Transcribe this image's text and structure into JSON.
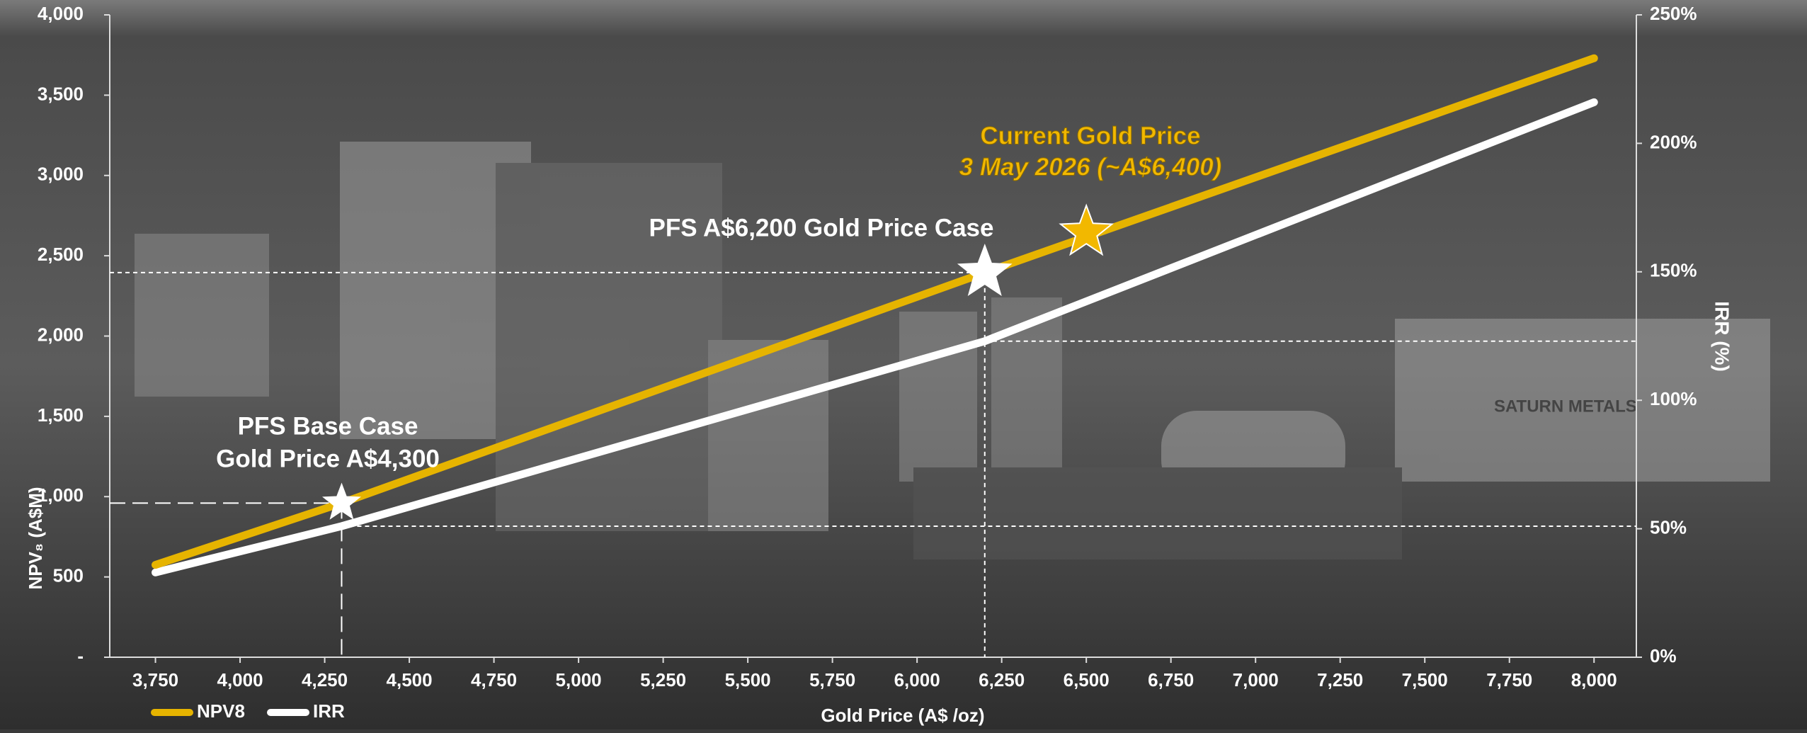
{
  "chart_data": {
    "type": "line",
    "x_label": "Gold Price (A$ /oz)",
    "y_label": "NPV₈ (A$M)",
    "y2_label": "IRR (%)",
    "x": [
      3750,
      4300,
      6200,
      8000
    ],
    "series": [
      {
        "name": "NPV8",
        "color": "#e6b400",
        "values": [
          575,
          960,
          2395,
          3730
        ]
      },
      {
        "name": "IRR",
        "color": "#ffffff",
        "axis": "y2",
        "values": [
          33,
          51,
          123,
          216
        ]
      }
    ],
    "xlim": [
      3615,
      8125
    ],
    "xticks": [
      {
        "value": 3750,
        "label": "3,750"
      },
      {
        "value": 4000,
        "label": "4,000"
      },
      {
        "value": 4250,
        "label": "4,250"
      },
      {
        "value": 4500,
        "label": "4,500"
      },
      {
        "value": 4750,
        "label": "4,750"
      },
      {
        "value": 5000,
        "label": "5,000"
      },
      {
        "value": 5250,
        "label": "5,250"
      },
      {
        "value": 5500,
        "label": "5,500"
      },
      {
        "value": 5750,
        "label": "5,750"
      },
      {
        "value": 6000,
        "label": "6,000"
      },
      {
        "value": 6250,
        "label": "6,250"
      },
      {
        "value": 6500,
        "label": "6,500"
      },
      {
        "value": 6750,
        "label": "6,750"
      },
      {
        "value": 7000,
        "label": "7,000"
      },
      {
        "value": 7250,
        "label": "7,250"
      },
      {
        "value": 7500,
        "label": "7,500"
      },
      {
        "value": 7750,
        "label": "7,750"
      },
      {
        "value": 8000,
        "label": "8,000"
      }
    ],
    "ylim": [
      0,
      4000
    ],
    "yticks": [
      {
        "value": 0,
        "label": "-"
      },
      500,
      {
        "value": 1000,
        "label": "1,000"
      },
      {
        "value": 1500,
        "label": "1,500"
      },
      {
        "value": 2000,
        "label": "2,000"
      },
      {
        "value": 2500,
        "label": "2,500"
      },
      {
        "value": 3000,
        "label": "3,000"
      },
      {
        "value": 3500,
        "label": "3,500"
      },
      {
        "value": 4000,
        "label": "4,000"
      }
    ],
    "y2lim": [
      0,
      250
    ],
    "y2ticks": [
      {
        "value": 0,
        "label": "0%"
      },
      {
        "value": 50,
        "label": "50%"
      },
      {
        "value": 100,
        "label": "100%"
      },
      {
        "value": 150,
        "label": "150%"
      },
      {
        "value": 200,
        "label": "200%"
      },
      {
        "value": 250,
        "label": "250%"
      }
    ],
    "markers": [
      {
        "x": 4300,
        "y": 960,
        "color": "#ffffff"
      },
      {
        "x": 6200,
        "y": 2395,
        "color": "#ffffff"
      },
      {
        "x": 6500,
        "y": 2645,
        "color": "#f2b800"
      }
    ],
    "annotations": [
      {
        "lines": [
          "PFS Base Case",
          "Gold Price A$4,300"
        ],
        "color": "#ffffff"
      },
      {
        "lines": [
          "PFS A$6,200 Gold Price Case"
        ],
        "color": "#ffffff"
      },
      {
        "lines": [
          "Current Gold Price",
          "3 May 2026 (~A$6,400)"
        ],
        "color": "#f2b800"
      }
    ],
    "background_text": "SATURN METALS"
  }
}
